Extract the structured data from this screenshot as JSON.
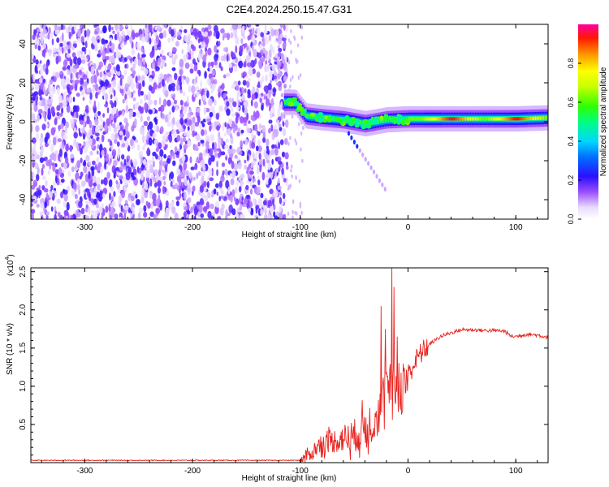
{
  "figure_title": "C2E4.2024.250.15.47.G31",
  "chart_data": [
    {
      "type": "heatmap",
      "title": "C2E4.2024.250.15.47.G31",
      "xlabel": "Height of straight line (km)",
      "ylabel": "Frequency (Hz)",
      "xlim": [
        -350,
        130
      ],
      "ylim": [
        -50,
        50
      ],
      "x_ticks": [
        -300,
        -200,
        -100,
        0,
        100
      ],
      "y_ticks": [
        -40,
        -20,
        0,
        20,
        40
      ],
      "colorbar": {
        "label": "Normalized spectral amplitude",
        "range": [
          0,
          1
        ],
        "ticks": [
          0.0,
          0.2,
          0.4,
          0.6,
          0.8
        ],
        "tick_labels": [
          "0.0",
          "0.2",
          "0.4",
          "0.6",
          "0.8"
        ]
      },
      "features": [
        {
          "x_range": [
            -350,
            -112
          ],
          "description": "broadband noise, low-medium amplitude"
        },
        {
          "ridge": [
            [
              -115,
              10
            ],
            [
              -105,
              10
            ],
            [
              -95,
              3
            ],
            [
              -80,
              2
            ],
            [
              -60,
              1
            ],
            [
              -40,
              -1
            ],
            [
              -20,
              1
            ],
            [
              0,
              1.5
            ],
            [
              50,
              1.5
            ],
            [
              100,
              1.5
            ],
            [
              130,
              2
            ]
          ]
        },
        {
          "hot_spot": {
            "x": 40,
            "y": 1.5,
            "amplitude": 0.95
          }
        },
        {
          "hot_spot": {
            "x": 100,
            "y": 1.5,
            "amplitude": 0.95
          }
        }
      ]
    },
    {
      "type": "line",
      "xlabel": "Height of straight line (km)",
      "ylabel": "SNR (10 * v/v)",
      "y_scale_label": "(x10",
      "y_scale_exponent": "4",
      "xlim": [
        -350,
        130
      ],
      "ylim": [
        0,
        2.55
      ],
      "x_ticks": [
        -300,
        -200,
        -100,
        0,
        100
      ],
      "y_ticks": [
        0.5,
        1.0,
        1.5,
        2.0,
        2.5
      ],
      "y_tick_labels": [
        "0.5",
        "1.0",
        "1.5",
        "2.0",
        "2.5"
      ],
      "series": [
        {
          "color": "#e8231e",
          "x": [
            -350,
            -100,
            -90,
            -80,
            -70,
            -60,
            -50,
            -40,
            -30,
            -25,
            -20,
            -15,
            -10,
            -5,
            0,
            10,
            20,
            30,
            40,
            50,
            60,
            70,
            80,
            90,
            95,
            100,
            110,
            120,
            130
          ],
          "y": [
            0.03,
            0.03,
            0.12,
            0.25,
            0.28,
            0.32,
            0.35,
            0.45,
            0.6,
            0.7,
            0.9,
            1.0,
            0.95,
            1.0,
            1.15,
            1.4,
            1.55,
            1.65,
            1.7,
            1.74,
            1.74,
            1.73,
            1.73,
            1.72,
            1.66,
            1.65,
            1.68,
            1.67,
            1.64
          ],
          "spikes": [
            {
              "x": -25,
              "y": 2.05
            },
            {
              "x": -21,
              "y": 1.75
            },
            {
              "x": -15,
              "y": 2.55
            },
            {
              "x": -13,
              "y": 2.3
            },
            {
              "x": -10,
              "y": 1.65
            }
          ]
        }
      ]
    }
  ]
}
